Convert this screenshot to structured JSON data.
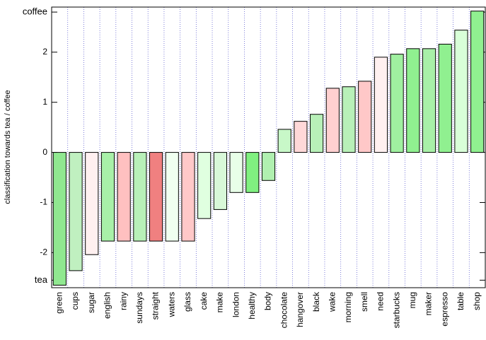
{
  "chart_data": {
    "type": "bar",
    "ylabel": "classification towards tea / coffee",
    "categories": [
      "green",
      "cups",
      "sugar",
      "english",
      "rainy",
      "sundays",
      "straight",
      "waters",
      "glass",
      "cake",
      "make",
      "london",
      "healthy",
      "body",
      "chocolate",
      "hangover",
      "black",
      "wake",
      "morning",
      "smell",
      "need",
      "starbucks",
      "mug",
      "maker",
      "espresso",
      "table",
      "shop"
    ],
    "values": [
      -2.65,
      -2.36,
      -2.04,
      -1.77,
      -1.77,
      -1.77,
      -1.77,
      -1.77,
      -1.77,
      -1.32,
      -1.14,
      -0.8,
      -0.8,
      -0.56,
      0.46,
      0.62,
      0.76,
      1.28,
      1.31,
      1.42,
      1.9,
      1.96,
      2.07,
      2.07,
      2.16,
      2.44,
      2.82
    ],
    "colors": [
      "#90e890",
      "#c0f0c0",
      "#fff0f0",
      "#a8f0a8",
      "#ffc0c0",
      "#b8f0b8",
      "#f08080",
      "#f0fff0",
      "#ffc8c8",
      "#e0ffe0",
      "#d8f8d8",
      "#e8ffe8",
      "#80f080",
      "#b0f0b0",
      "#c8f8c8",
      "#ffd8d8",
      "#b8f0b8",
      "#ffd0d0",
      "#b8f0b8",
      "#ffc8c8",
      "#fff0f0",
      "#a0f0a0",
      "#90f090",
      "#a8f0a8",
      "#90f090",
      "#d8ffd8",
      "#90f090"
    ],
    "ylim": [
      -2.7,
      2.9
    ],
    "yticks": [
      {
        "value": -2.55,
        "label": "tea"
      },
      -2,
      -1,
      0,
      1,
      2,
      {
        "value": 2.8,
        "label": "coffee"
      }
    ],
    "grid": "vertical-dotted"
  }
}
